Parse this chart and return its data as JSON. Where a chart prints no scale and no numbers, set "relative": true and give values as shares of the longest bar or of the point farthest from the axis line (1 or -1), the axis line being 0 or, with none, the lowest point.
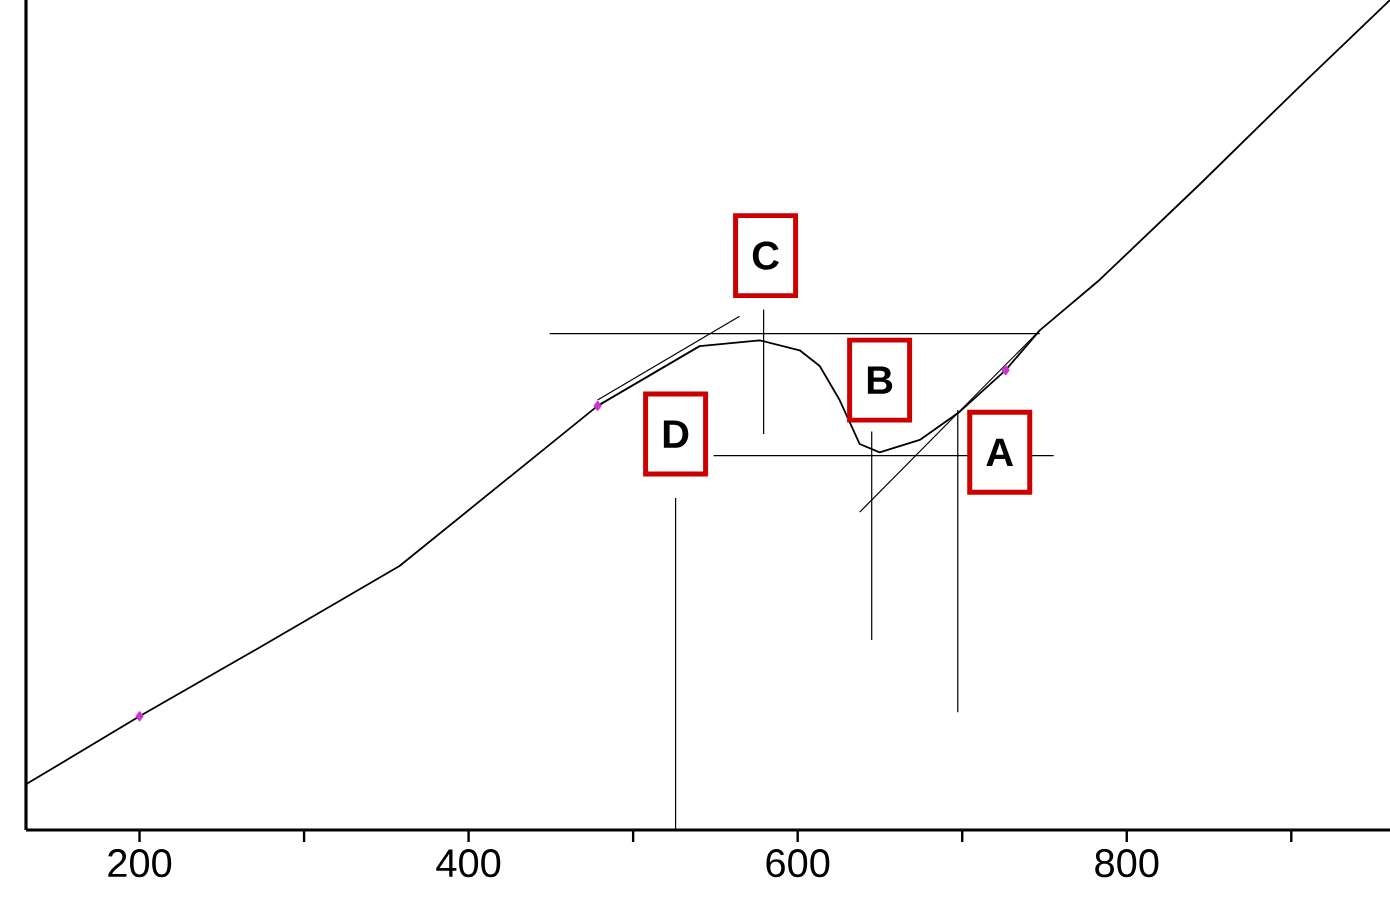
{
  "chart_data": {
    "type": "line",
    "relative": true,
    "xlim": [
      131,
      960
    ],
    "xticks": [
      200,
      {
        "value": 300,
        "label": null
      },
      400,
      {
        "value": 500,
        "label": null
      },
      600,
      {
        "value": 700,
        "label": null
      },
      800,
      {
        "value": 900,
        "label": null
      }
    ],
    "series": [
      {
        "color": "#000000",
        "x": [
          131,
          200,
          276.6,
          358,
          478.4,
          540.4,
          576.9,
          601.2,
          613.4,
          625.5,
          637.7,
          649.8,
          674.2,
          698.5,
          726.4,
          747.1,
          783.6,
          844.4,
          905.2,
          960
        ],
        "values": [
          0.055,
          0.137,
          0.224,
          0.318,
          0.511,
          0.583,
          0.59,
          0.578,
          0.559,
          0.518,
          0.465,
          0.455,
          0.47,
          0.504,
          0.554,
          0.602,
          0.663,
          0.778,
          0.896,
          1.0
        ]
      },
      {
        "type": "scatter",
        "marker": "diamond",
        "color": "#cc33cc",
        "x": [
          200,
          478.4,
          726.4
        ],
        "values": [
          0.137,
          0.511,
          0.554
        ]
      },
      {
        "type": "line",
        "color": "#000000",
        "x": [
          449.2,
          747.1
        ],
        "values": [
          0.598,
          0.598
        ]
      },
      {
        "type": "line",
        "color": "#000000",
        "x": [
          548.9,
          755.6
        ],
        "values": [
          0.451,
          0.451
        ]
      },
      {
        "type": "line",
        "color": "#000000",
        "x": [
          579.3,
          579.3
        ],
        "values": [
          0.627,
          0.477
        ]
      },
      {
        "type": "line",
        "color": "#000000",
        "x": [
          645.0,
          645.0
        ],
        "values": [
          0.48,
          0.229
        ]
      },
      {
        "type": "line",
        "color": "#000000",
        "x": [
          697.3,
          697.3
        ],
        "values": [
          0.506,
          0.142
        ]
      },
      {
        "type": "line",
        "color": "#000000",
        "x": [
          525.8,
          525.8
        ],
        "values": [
          0.4,
          0.0
        ]
      },
      {
        "type": "line",
        "color": "#000000",
        "x": [
          637.7,
          747.1
        ],
        "values": [
          0.383,
          0.602
        ]
      },
      {
        "type": "line",
        "color": "#000000",
        "x": [
          478.4,
          564.7
        ],
        "values": [
          0.518,
          0.619
        ]
      }
    ],
    "annotations": [
      {
        "text": "A",
        "x": 722.8,
        "y": 0.455
      },
      {
        "text": "B",
        "x": 649.8,
        "y": 0.542
      },
      {
        "text": "C",
        "x": 580.5,
        "y": 0.692
      },
      {
        "text": "D",
        "x": 525.8,
        "y": 0.477
      }
    ]
  }
}
